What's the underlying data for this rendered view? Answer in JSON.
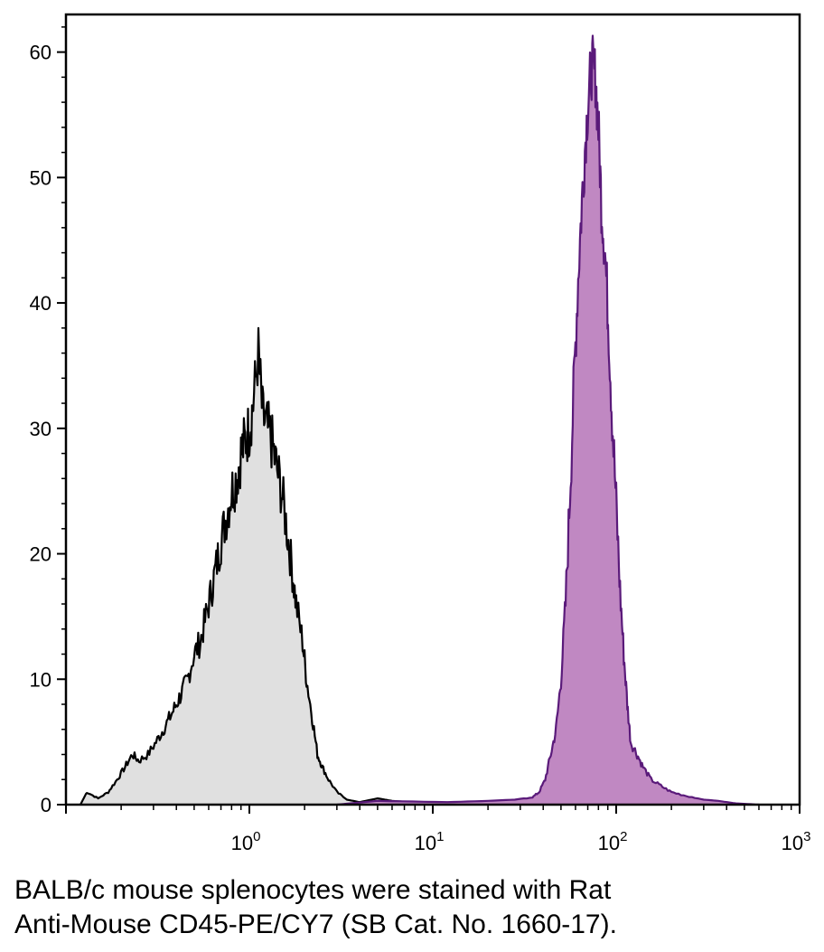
{
  "chart_data": {
    "type": "area",
    "title": "",
    "xlabel": "",
    "ylabel": "",
    "x_scale": "log",
    "xlim": [
      0.1,
      1000
    ],
    "ylim": [
      0,
      63
    ],
    "x_ticks": [
      {
        "base": "10",
        "exp": "0",
        "value": 1
      },
      {
        "base": "10",
        "exp": "1",
        "value": 10
      },
      {
        "base": "10",
        "exp": "2",
        "value": 100
      },
      {
        "base": "10",
        "exp": "3",
        "value": 1000
      }
    ],
    "y_ticks": [
      "0",
      "10",
      "20",
      "30",
      "40",
      "50",
      "60"
    ],
    "grid": false,
    "series": [
      {
        "color": "#000000",
        "fill": "#e0e0e0",
        "points": [
          [
            0.12,
            0
          ],
          [
            0.13,
            1
          ],
          [
            0.15,
            0.5
          ],
          [
            0.17,
            1
          ],
          [
            0.19,
            2
          ],
          [
            0.21,
            3
          ],
          [
            0.23,
            4
          ],
          [
            0.25,
            3.5
          ],
          [
            0.28,
            4
          ],
          [
            0.31,
            5
          ],
          [
            0.34,
            6
          ],
          [
            0.37,
            7
          ],
          [
            0.4,
            8
          ],
          [
            0.43,
            9
          ],
          [
            0.46,
            10
          ],
          [
            0.5,
            12
          ],
          [
            0.54,
            13
          ],
          [
            0.58,
            15
          ],
          [
            0.62,
            17
          ],
          [
            0.66,
            19
          ],
          [
            0.7,
            21
          ],
          [
            0.75,
            23
          ],
          [
            0.8,
            25
          ],
          [
            0.85,
            26
          ],
          [
            0.9,
            28
          ],
          [
            0.95,
            29
          ],
          [
            1.0,
            30
          ],
          [
            1.05,
            32
          ],
          [
            1.12,
            36
          ],
          [
            1.18,
            31
          ],
          [
            1.25,
            30
          ],
          [
            1.32,
            29
          ],
          [
            1.4,
            27
          ],
          [
            1.5,
            25
          ],
          [
            1.6,
            22
          ],
          [
            1.7,
            19
          ],
          [
            1.8,
            16
          ],
          [
            1.95,
            13
          ],
          [
            2.05,
            10
          ],
          [
            2.2,
            7
          ],
          [
            2.35,
            4
          ],
          [
            2.5,
            3
          ],
          [
            2.7,
            2
          ],
          [
            3.0,
            1
          ],
          [
            3.4,
            0.4
          ],
          [
            4.0,
            0.2
          ],
          [
            5.0,
            0.5
          ],
          [
            6.0,
            0.3
          ],
          [
            7.5,
            0.2
          ],
          [
            9.0,
            0
          ]
        ]
      },
      {
        "color": "#5a1a7a",
        "fill": "#c088c2",
        "points": [
          [
            3.0,
            0
          ],
          [
            5.0,
            0.3
          ],
          [
            12,
            0.2
          ],
          [
            20,
            0.3
          ],
          [
            28,
            0.4
          ],
          [
            35,
            0.6
          ],
          [
            38,
            1
          ],
          [
            41,
            2
          ],
          [
            44,
            4
          ],
          [
            47,
            6
          ],
          [
            50,
            10
          ],
          [
            53,
            16
          ],
          [
            56,
            25
          ],
          [
            59,
            34
          ],
          [
            62,
            42
          ],
          [
            65,
            48
          ],
          [
            68,
            53
          ],
          [
            71,
            57
          ],
          [
            74,
            59
          ],
          [
            77,
            58
          ],
          [
            80,
            54
          ],
          [
            83,
            48
          ],
          [
            87,
            44
          ],
          [
            91,
            38
          ],
          [
            95,
            31
          ],
          [
            100,
            24
          ],
          [
            105,
            17
          ],
          [
            110,
            12
          ],
          [
            115,
            8
          ],
          [
            120,
            5
          ],
          [
            130,
            4
          ],
          [
            140,
            3
          ],
          [
            155,
            2
          ],
          [
            175,
            1.5
          ],
          [
            200,
            1
          ],
          [
            240,
            0.7
          ],
          [
            300,
            0.4
          ],
          [
            360,
            0.3
          ],
          [
            450,
            0.1
          ],
          [
            600,
            0
          ]
        ]
      }
    ]
  },
  "caption": {
    "line1": "BALB/c mouse splenocytes were stained with Rat",
    "line2": "Anti-Mouse CD45-PE/CY7 (SB Cat. No. 1660-17)."
  }
}
